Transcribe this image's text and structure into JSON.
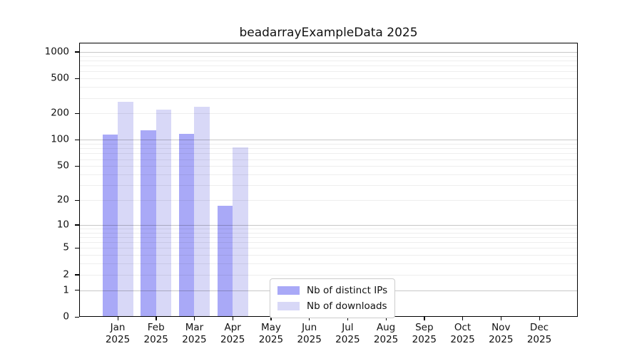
{
  "chart_data": {
    "type": "bar",
    "title": "beadarrayExampleData 2025",
    "xlabel": "",
    "ylabel": "",
    "year": "2025",
    "categories": [
      "Jan",
      "Feb",
      "Mar",
      "Apr",
      "May",
      "Jun",
      "Jul",
      "Aug",
      "Sep",
      "Oct",
      "Nov",
      "Dec"
    ],
    "series": [
      {
        "name": "Nb of distinct IPs",
        "color": "#a9a9f7",
        "values": [
          115,
          128,
          118,
          17,
          0,
          0,
          0,
          0,
          0,
          0,
          0,
          0
        ]
      },
      {
        "name": "Nb of downloads",
        "color": "#d8d8f7",
        "values": [
          270,
          220,
          237,
          82,
          0,
          0,
          0,
          0,
          0,
          0,
          0,
          0
        ]
      }
    ],
    "y_axis": {
      "scale": "log1p",
      "ticks": [
        0,
        1,
        2,
        5,
        10,
        20,
        50,
        100,
        200,
        500,
        1000
      ],
      "major_gridlines": [
        1,
        10,
        100,
        1000
      ],
      "ylim": [
        0,
        1270
      ],
      "grid": "on"
    },
    "legend": {
      "position": "lower-center-inside"
    },
    "colors": {
      "major_grid": "rgba(0,0,0,0.22)",
      "minor_grid": "rgba(0,0,0,0.065)",
      "spine": "#000000"
    }
  }
}
